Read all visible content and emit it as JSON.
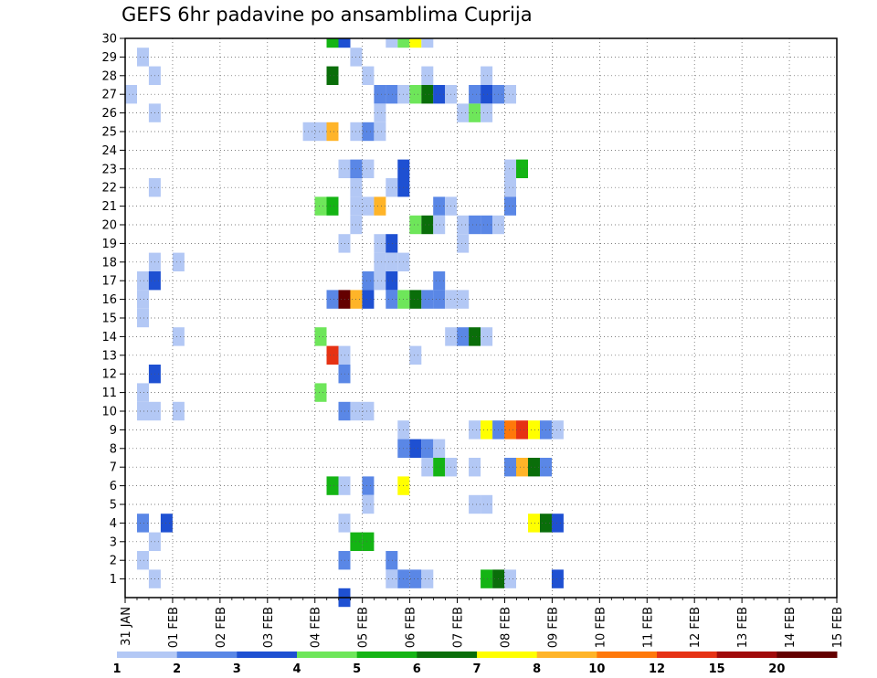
{
  "chart_data": {
    "type": "heatmap",
    "title": "GEFS 6hr padavine po ansamblima Cuprija",
    "xlabel": "",
    "ylabel": "",
    "x_tick_labels": [
      "31 JAN",
      "01 FEB",
      "02 FEB",
      "03 FEB",
      "04 FEB",
      "05 FEB",
      "06 FEB",
      "07 FEB",
      "08 FEB",
      "09 FEB",
      "10 FEB",
      "11 FEB",
      "12 FEB",
      "13 FEB",
      "14 FEB",
      "15 FEB"
    ],
    "y_tick_labels": [
      "1",
      "2",
      "3",
      "4",
      "5",
      "6",
      "7",
      "8",
      "9",
      "10",
      "11",
      "12",
      "13",
      "14",
      "15",
      "16",
      "17",
      "18",
      "19",
      "20",
      "21",
      "22",
      "23",
      "24",
      "25",
      "26",
      "27",
      "28",
      "29",
      "30"
    ],
    "x_range_steps": [
      0,
      60
    ],
    "y_range": [
      0,
      30
    ],
    "grid": true,
    "legend": {
      "placement": "bottom",
      "levels": [
        "1",
        "2",
        "3",
        "4",
        "5",
        "6",
        "7",
        "8",
        "10",
        "12",
        "15",
        "20"
      ],
      "colors": [
        "#b3c8f5",
        "#5a87e6",
        "#1e50d2",
        "#6ee65a",
        "#14b414",
        "#0a6e0a",
        "#ffff00",
        "#ffb428",
        "#ff780a",
        "#e63214",
        "#a00a0a",
        "#640000"
      ]
    },
    "cells": [
      [
        30,
        17,
        4
      ],
      [
        30,
        18,
        2
      ],
      [
        30,
        22,
        0
      ],
      [
        30,
        23,
        3
      ],
      [
        30,
        24,
        6
      ],
      [
        30,
        25,
        0
      ],
      [
        29,
        1,
        0
      ],
      [
        29,
        19,
        0
      ],
      [
        28,
        2,
        0
      ],
      [
        28,
        17,
        5
      ],
      [
        28,
        20,
        0
      ],
      [
        28,
        25,
        0
      ],
      [
        28,
        30,
        0
      ],
      [
        27,
        0,
        0
      ],
      [
        27,
        21,
        1
      ],
      [
        27,
        22,
        1
      ],
      [
        27,
        23,
        0
      ],
      [
        27,
        24,
        3
      ],
      [
        27,
        25,
        5
      ],
      [
        27,
        26,
        2
      ],
      [
        27,
        27,
        0
      ],
      [
        27,
        29,
        1
      ],
      [
        27,
        30,
        2
      ],
      [
        27,
        31,
        1
      ],
      [
        27,
        32,
        0
      ],
      [
        26,
        2,
        0
      ],
      [
        26,
        21,
        0
      ],
      [
        26,
        28,
        0
      ],
      [
        26,
        29,
        3
      ],
      [
        26,
        30,
        0
      ],
      [
        25,
        15,
        0
      ],
      [
        25,
        16,
        0
      ],
      [
        25,
        17,
        7
      ],
      [
        25,
        19,
        0
      ],
      [
        25,
        20,
        1
      ],
      [
        25,
        21,
        0
      ],
      [
        23,
        18,
        0
      ],
      [
        23,
        19,
        1
      ],
      [
        23,
        20,
        0
      ],
      [
        23,
        23,
        2
      ],
      [
        23,
        32,
        0
      ],
      [
        23,
        33,
        4
      ],
      [
        22,
        2,
        0
      ],
      [
        22,
        19,
        0
      ],
      [
        22,
        22,
        0
      ],
      [
        22,
        23,
        2
      ],
      [
        22,
        32,
        0
      ],
      [
        21,
        16,
        3
      ],
      [
        21,
        17,
        4
      ],
      [
        21,
        19,
        0
      ],
      [
        21,
        20,
        0
      ],
      [
        21,
        21,
        7
      ],
      [
        21,
        26,
        1
      ],
      [
        21,
        27,
        0
      ],
      [
        21,
        32,
        1
      ],
      [
        20,
        19,
        0
      ],
      [
        20,
        24,
        3
      ],
      [
        20,
        25,
        5
      ],
      [
        20,
        26,
        0
      ],
      [
        20,
        28,
        0
      ],
      [
        20,
        29,
        1
      ],
      [
        20,
        30,
        1
      ],
      [
        20,
        31,
        0
      ],
      [
        19,
        18,
        0
      ],
      [
        19,
        21,
        0
      ],
      [
        19,
        22,
        2
      ],
      [
        19,
        28,
        0
      ],
      [
        18,
        2,
        0
      ],
      [
        18,
        4,
        0
      ],
      [
        18,
        21,
        0
      ],
      [
        18,
        22,
        0
      ],
      [
        18,
        23,
        0
      ],
      [
        17,
        1,
        0
      ],
      [
        17,
        2,
        2
      ],
      [
        17,
        20,
        1
      ],
      [
        17,
        21,
        0
      ],
      [
        17,
        22,
        2
      ],
      [
        17,
        26,
        1
      ],
      [
        16,
        1,
        0
      ],
      [
        16,
        17,
        1
      ],
      [
        16,
        18,
        11
      ],
      [
        16,
        19,
        7
      ],
      [
        16,
        20,
        2
      ],
      [
        16,
        22,
        1
      ],
      [
        16,
        23,
        3
      ],
      [
        16,
        24,
        5
      ],
      [
        16,
        25,
        1
      ],
      [
        16,
        26,
        1
      ],
      [
        16,
        27,
        0
      ],
      [
        16,
        28,
        0
      ],
      [
        15,
        1,
        0
      ],
      [
        14,
        4,
        0
      ],
      [
        14,
        16,
        3
      ],
      [
        14,
        27,
        0
      ],
      [
        14,
        28,
        1
      ],
      [
        14,
        29,
        5
      ],
      [
        14,
        30,
        0
      ],
      [
        13,
        17,
        9
      ],
      [
        13,
        18,
        0
      ],
      [
        13,
        24,
        0
      ],
      [
        12,
        2,
        2
      ],
      [
        12,
        18,
        1
      ],
      [
        11,
        1,
        0
      ],
      [
        11,
        16,
        3
      ],
      [
        10,
        1,
        0
      ],
      [
        10,
        2,
        0
      ],
      [
        10,
        4,
        0
      ],
      [
        10,
        18,
        1
      ],
      [
        10,
        19,
        0
      ],
      [
        10,
        20,
        0
      ],
      [
        9,
        23,
        0
      ],
      [
        9,
        29,
        0
      ],
      [
        9,
        30,
        6
      ],
      [
        9,
        31,
        1
      ],
      [
        9,
        32,
        8
      ],
      [
        9,
        33,
        9
      ],
      [
        9,
        34,
        6
      ],
      [
        9,
        35,
        1
      ],
      [
        9,
        36,
        0
      ],
      [
        8,
        23,
        1
      ],
      [
        8,
        24,
        2
      ],
      [
        8,
        25,
        1
      ],
      [
        8,
        26,
        0
      ],
      [
        7,
        25,
        0
      ],
      [
        7,
        26,
        4
      ],
      [
        7,
        27,
        0
      ],
      [
        7,
        29,
        0
      ],
      [
        7,
        32,
        1
      ],
      [
        7,
        33,
        7
      ],
      [
        7,
        34,
        5
      ],
      [
        7,
        35,
        1
      ],
      [
        6,
        17,
        4
      ],
      [
        6,
        18,
        0
      ],
      [
        6,
        20,
        1
      ],
      [
        6,
        23,
        6
      ],
      [
        5,
        20,
        0
      ],
      [
        5,
        29,
        0
      ],
      [
        5,
        30,
        0
      ],
      [
        4,
        1,
        1
      ],
      [
        4,
        3,
        2
      ],
      [
        4,
        18,
        0
      ],
      [
        4,
        34,
        6
      ],
      [
        4,
        35,
        5
      ],
      [
        4,
        36,
        2
      ],
      [
        3,
        2,
        0
      ],
      [
        3,
        19,
        4
      ],
      [
        3,
        20,
        4
      ],
      [
        2,
        1,
        0
      ],
      [
        2,
        18,
        1
      ],
      [
        2,
        22,
        1
      ],
      [
        1,
        2,
        0
      ],
      [
        1,
        22,
        0
      ],
      [
        1,
        23,
        1
      ],
      [
        1,
        24,
        1
      ],
      [
        1,
        25,
        0
      ],
      [
        1,
        30,
        4
      ],
      [
        1,
        31,
        5
      ],
      [
        1,
        32,
        0
      ],
      [
        1,
        36,
        2
      ],
      [
        0,
        18,
        2
      ]
    ]
  }
}
